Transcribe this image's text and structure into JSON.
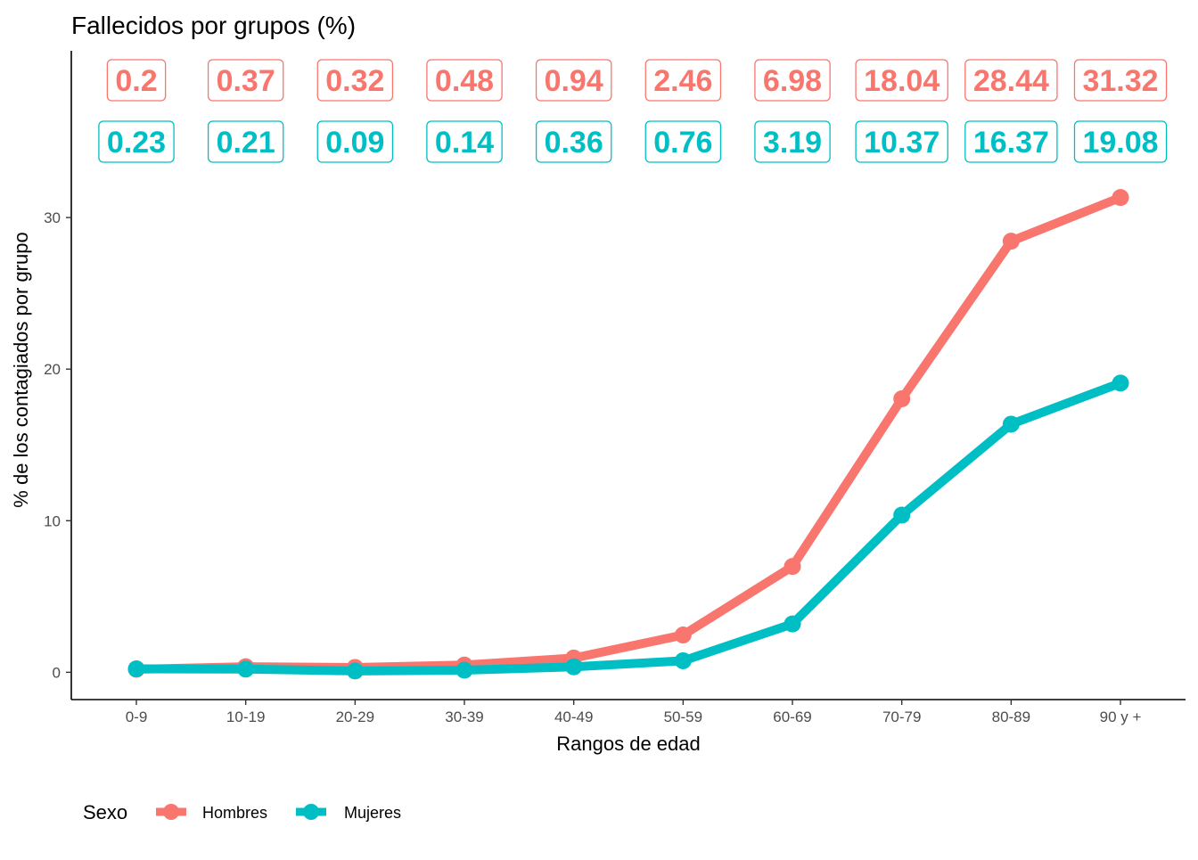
{
  "chart_data": {
    "type": "line",
    "title": "Fallecidos por grupos (%)",
    "xlabel": "Rangos de edad",
    "ylabel": "% de los contagiados por grupo",
    "categories": [
      "0-9",
      "10-19",
      "20-29",
      "30-39",
      "40-49",
      "50-59",
      "60-69",
      "70-79",
      "80-89",
      "90 y +"
    ],
    "series": [
      {
        "name": "Hombres",
        "color": "#F8766D",
        "values": [
          0.2,
          0.37,
          0.32,
          0.48,
          0.94,
          2.46,
          6.98,
          18.04,
          28.44,
          31.32
        ],
        "labels": [
          "0.2",
          "0.37",
          "0.32",
          "0.48",
          "0.94",
          "2.46",
          "6.98",
          "18.04",
          "28.44",
          "31.32"
        ]
      },
      {
        "name": "Mujeres",
        "color": "#00BFC4",
        "values": [
          0.23,
          0.21,
          0.09,
          0.14,
          0.36,
          0.76,
          3.19,
          10.37,
          16.37,
          19.08
        ],
        "labels": [
          "0.23",
          "0.21",
          "0.09",
          "0.14",
          "0.36",
          "0.76",
          "3.19",
          "10.37",
          "16.37",
          "19.08"
        ]
      }
    ],
    "yticks": [
      0,
      10,
      20,
      30
    ],
    "ytick_labels": [
      "0",
      "10",
      "20",
      "30"
    ],
    "ylim": [
      -1.8,
      41
    ],
    "grid": false,
    "legend": {
      "title": "Sexo",
      "position": "bottom-left",
      "items": [
        "Hombres",
        "Mujeres"
      ]
    }
  }
}
